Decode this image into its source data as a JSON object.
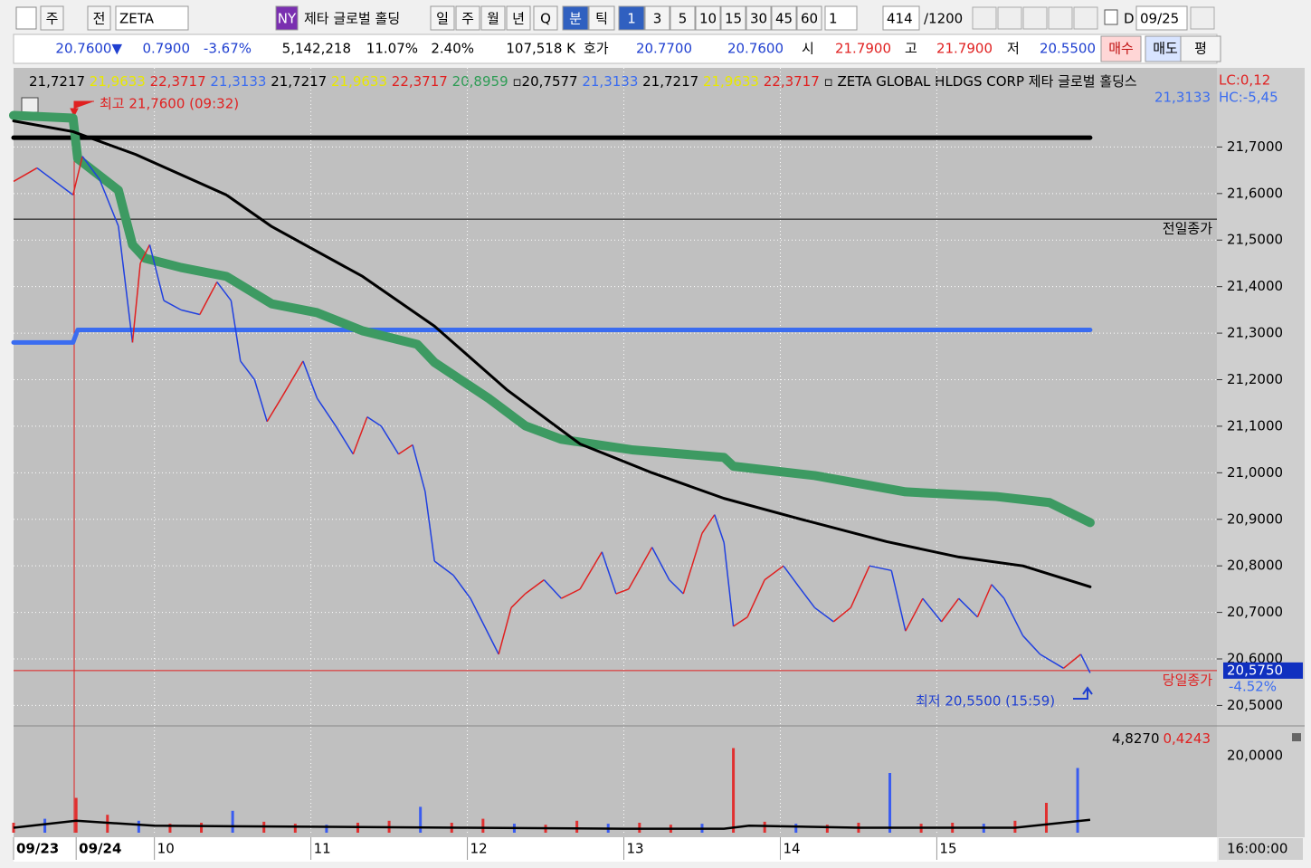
{
  "toolbar": {
    "items": [
      "주",
      "전",
      "ZETA",
      "NY",
      "제타 글로벌 홀딩",
      "일",
      "주",
      "월",
      "년",
      "Q",
      "분",
      "틱",
      "1",
      "3",
      "5",
      "10",
      "15",
      "30",
      "45",
      "60",
      "1",
      "414",
      "/1200",
      "D",
      "09/25"
    ]
  },
  "quote": {
    "items": [
      {
        "text": "20.7600▼",
        "color": "#1f3fd0"
      },
      {
        "text": "0.7900",
        "color": "#1f3fd0"
      },
      {
        "text": "-3.67%",
        "color": "#1f3fd0"
      },
      {
        "text": "5,142,218",
        "color": "#000000"
      },
      {
        "text": "11.07%",
        "color": "#000000"
      },
      {
        "text": "2.40%",
        "color": "#000000"
      },
      {
        "text": "107,518 K",
        "color": "#000000"
      },
      {
        "text": "호가",
        "color": "#000000"
      },
      {
        "text": "20.7700",
        "color": "#1f3fd0"
      },
      {
        "text": "20.7600",
        "color": "#1f3fd0"
      },
      {
        "text": "시",
        "color": "#000000"
      },
      {
        "text": "21.7900",
        "color": "#e02020"
      },
      {
        "text": "고",
        "color": "#000000"
      },
      {
        "text": "21.7900",
        "color": "#e02020"
      },
      {
        "text": "저",
        "color": "#000000"
      },
      {
        "text": "20.5500",
        "color": "#1f3fd0"
      },
      {
        "text": "매수",
        "color": "#c01010"
      },
      {
        "text": "매도",
        "color": "#000000"
      },
      {
        "text": "평",
        "color": "#000000"
      }
    ]
  },
  "legend": {
    "items": [
      {
        "text": "21,7217 ",
        "color": "#000000"
      },
      {
        "text": "21,9633 ",
        "color": "#e8e800"
      },
      {
        "text": "22,3717 ",
        "color": "#e02020"
      },
      {
        "text": "21,3133 ",
        "color": "#3a6cf0"
      },
      {
        "text": "21,7217 ",
        "color": "#000000"
      },
      {
        "text": "21,9633 ",
        "color": "#e8e800"
      },
      {
        "text": "22,3717 ",
        "color": "#e02020"
      },
      {
        "text": "20,8959 ",
        "color": "#2e9c55"
      },
      {
        "text": "▫20,7577 ",
        "color": "#000000"
      },
      {
        "text": "21,3133 ",
        "color": "#3a6cf0"
      },
      {
        "text": "21,7217 ",
        "color": "#000000"
      },
      {
        "text": "21,9633 ",
        "color": "#e8e800"
      },
      {
        "text": "22,3717 ",
        "color": "#e02020"
      },
      {
        "text": "▫ ZETA GLOBAL HLDGS CORP  제타 글로벌 홀딩스",
        "color": "#000000"
      }
    ],
    "lc": "LC:0,12",
    "hc": "HC:-5,45",
    "hc_value": "21,3133"
  },
  "chart_data": {
    "type": "line",
    "xlim": [
      9.1,
      16.79
    ],
    "ylim": [
      20.46,
      21.87
    ],
    "xticks": [
      {
        "value": 9.1,
        "label": "09/23"
      },
      {
        "value": 9.5,
        "label": "09/24"
      },
      {
        "value": 10,
        "label": "10"
      },
      {
        "value": 11,
        "label": "11"
      },
      {
        "value": 12,
        "label": "12"
      },
      {
        "value": 13,
        "label": "13"
      },
      {
        "value": 14,
        "label": "14"
      },
      {
        "value": 15,
        "label": "15"
      }
    ],
    "yticks": [
      {
        "value": 20.5,
        "label": "20,5000"
      },
      {
        "value": 20.6,
        "label": "20,6000"
      },
      {
        "value": 20.7,
        "label": "20,7000"
      },
      {
        "value": 20.8,
        "label": "20,8000"
      },
      {
        "value": 20.9,
        "label": "20,9000"
      },
      {
        "value": 21.0,
        "label": "21,0000"
      },
      {
        "value": 21.1,
        "label": "21,1000"
      },
      {
        "value": 21.2,
        "label": "21,2000"
      },
      {
        "value": 21.3,
        "label": "21,3000"
      },
      {
        "value": 21.4,
        "label": "21,4000"
      },
      {
        "value": 21.5,
        "label": "21,5000"
      },
      {
        "value": 21.6,
        "label": "21,6000"
      },
      {
        "value": 21.7,
        "label": "21,7000"
      }
    ],
    "grid": true,
    "price": {
      "up_color": "#e02020",
      "down_color": "#2040e0",
      "x": [
        9.1,
        9.25,
        9.48,
        9.54,
        9.65,
        9.77,
        9.86,
        9.91,
        9.97,
        10.06,
        10.17,
        10.29,
        10.4,
        10.49,
        10.55,
        10.64,
        10.72,
        10.81,
        10.95,
        11.04,
        11.16,
        11.27,
        11.36,
        11.45,
        11.56,
        11.65,
        11.73,
        11.79,
        11.91,
        12.02,
        12.11,
        12.2,
        12.28,
        12.37,
        12.49,
        12.6,
        12.72,
        12.86,
        12.95,
        13.03,
        13.18,
        13.29,
        13.38,
        13.5,
        13.58,
        13.64,
        13.7,
        13.79,
        13.9,
        14.02,
        14.13,
        14.22,
        14.34,
        14.45,
        14.57,
        14.71,
        14.8,
        14.91,
        15.03,
        15.14,
        15.26,
        15.35,
        15.43,
        15.55,
        15.66,
        15.81,
        15.92,
        15.98
      ],
      "values": [
        21.626,
        21.655,
        21.597,
        21.68,
        21.63,
        21.53,
        21.28,
        21.45,
        21.49,
        21.37,
        21.35,
        21.34,
        21.41,
        21.37,
        21.24,
        21.2,
        21.11,
        21.16,
        21.24,
        21.16,
        21.1,
        21.04,
        21.12,
        21.1,
        21.04,
        21.06,
        20.96,
        20.81,
        20.78,
        20.73,
        20.67,
        20.61,
        20.71,
        20.74,
        20.77,
        20.73,
        20.75,
        20.83,
        20.74,
        20.75,
        20.84,
        20.77,
        20.74,
        20.87,
        20.91,
        20.85,
        20.67,
        20.69,
        20.77,
        20.8,
        20.75,
        20.71,
        20.68,
        20.71,
        20.8,
        20.79,
        20.66,
        20.73,
        20.68,
        20.73,
        20.69,
        20.76,
        20.73,
        20.65,
        20.61,
        20.58,
        20.61,
        20.57
      ]
    },
    "series": [
      {
        "color": "#000000",
        "width": 5,
        "x": [
          9.1,
          15.98
        ],
        "values": [
          21.72,
          21.72
        ]
      },
      {
        "color": "#3a6cf0",
        "width": 5,
        "x": [
          9.1,
          9.48,
          9.51,
          15.98
        ],
        "values": [
          21.28,
          21.28,
          21.307,
          21.307
        ]
      },
      {
        "color": "#3d9a62",
        "width": 10,
        "x": [
          9.1,
          9.48,
          9.51,
          9.77,
          9.86,
          9.94,
          10.17,
          10.46,
          10.75,
          11.04,
          11.33,
          11.68,
          11.79,
          12.14,
          12.37,
          12.6,
          13.06,
          13.64,
          13.7,
          14.22,
          14.8,
          15.38,
          15.72,
          15.98
        ],
        "values": [
          21.768,
          21.762,
          21.675,
          21.607,
          21.49,
          21.461,
          21.441,
          21.422,
          21.363,
          21.344,
          21.305,
          21.276,
          21.237,
          21.159,
          21.101,
          21.072,
          21.049,
          21.033,
          21.014,
          20.994,
          20.959,
          20.949,
          20.936,
          20.893
        ]
      },
      {
        "color": "#000000",
        "width": 3,
        "x": [
          9.1,
          9.48,
          9.88,
          10.46,
          10.75,
          11.33,
          11.79,
          12.25,
          12.72,
          13.18,
          13.64,
          14.1,
          14.68,
          15.14,
          15.55,
          15.98
        ],
        "values": [
          21.756,
          21.733,
          21.684,
          21.597,
          21.529,
          21.422,
          21.315,
          21.179,
          21.062,
          21.0,
          20.945,
          20.903,
          20.852,
          20.819,
          20.8,
          20.755
        ]
      }
    ],
    "prev_close": {
      "value": 21.545,
      "label": "전일종가",
      "color": "#000000"
    },
    "today_close": {
      "value": 20.575,
      "label": "당일종가",
      "color": "#e02020",
      "box": "20,5750",
      "change": "-4.52%"
    },
    "high_note": "최고 21,7600 (09:32)",
    "low_note": "최저 20,5500 (15:59)",
    "volume": {
      "color": "#e03030",
      "ylim": [
        0,
        100
      ],
      "axis_label": "20,0000",
      "readout": "4,8270",
      "readout2": "0,4243",
      "x": [
        9.1,
        9.3,
        9.5,
        9.7,
        9.9,
        10.1,
        10.3,
        10.5,
        10.7,
        10.9,
        11.1,
        11.3,
        11.5,
        11.7,
        11.9,
        12.1,
        12.3,
        12.5,
        12.7,
        12.9,
        13.1,
        13.3,
        13.5,
        13.7,
        13.9,
        14.1,
        14.3,
        14.5,
        14.7,
        14.9,
        15.1,
        15.3,
        15.5,
        15.7,
        15.9
      ],
      "values": [
        10,
        14,
        35,
        18,
        12,
        9,
        10,
        22,
        11,
        9,
        8,
        10,
        12,
        26,
        10,
        14,
        9,
        8,
        12,
        9,
        10,
        8,
        9,
        85,
        11,
        9,
        8,
        10,
        60,
        9,
        10,
        9,
        12,
        30,
        65
      ],
      "ma": {
        "x": [
          9.1,
          9.5,
          10.0,
          11.0,
          12.0,
          13.0,
          13.64,
          13.8,
          14.5,
          15.5,
          15.98
        ],
        "values": [
          5,
          12,
          7,
          6,
          5,
          4,
          4,
          7,
          5,
          5,
          13
        ]
      }
    },
    "cursor_time": "16:00:00"
  }
}
